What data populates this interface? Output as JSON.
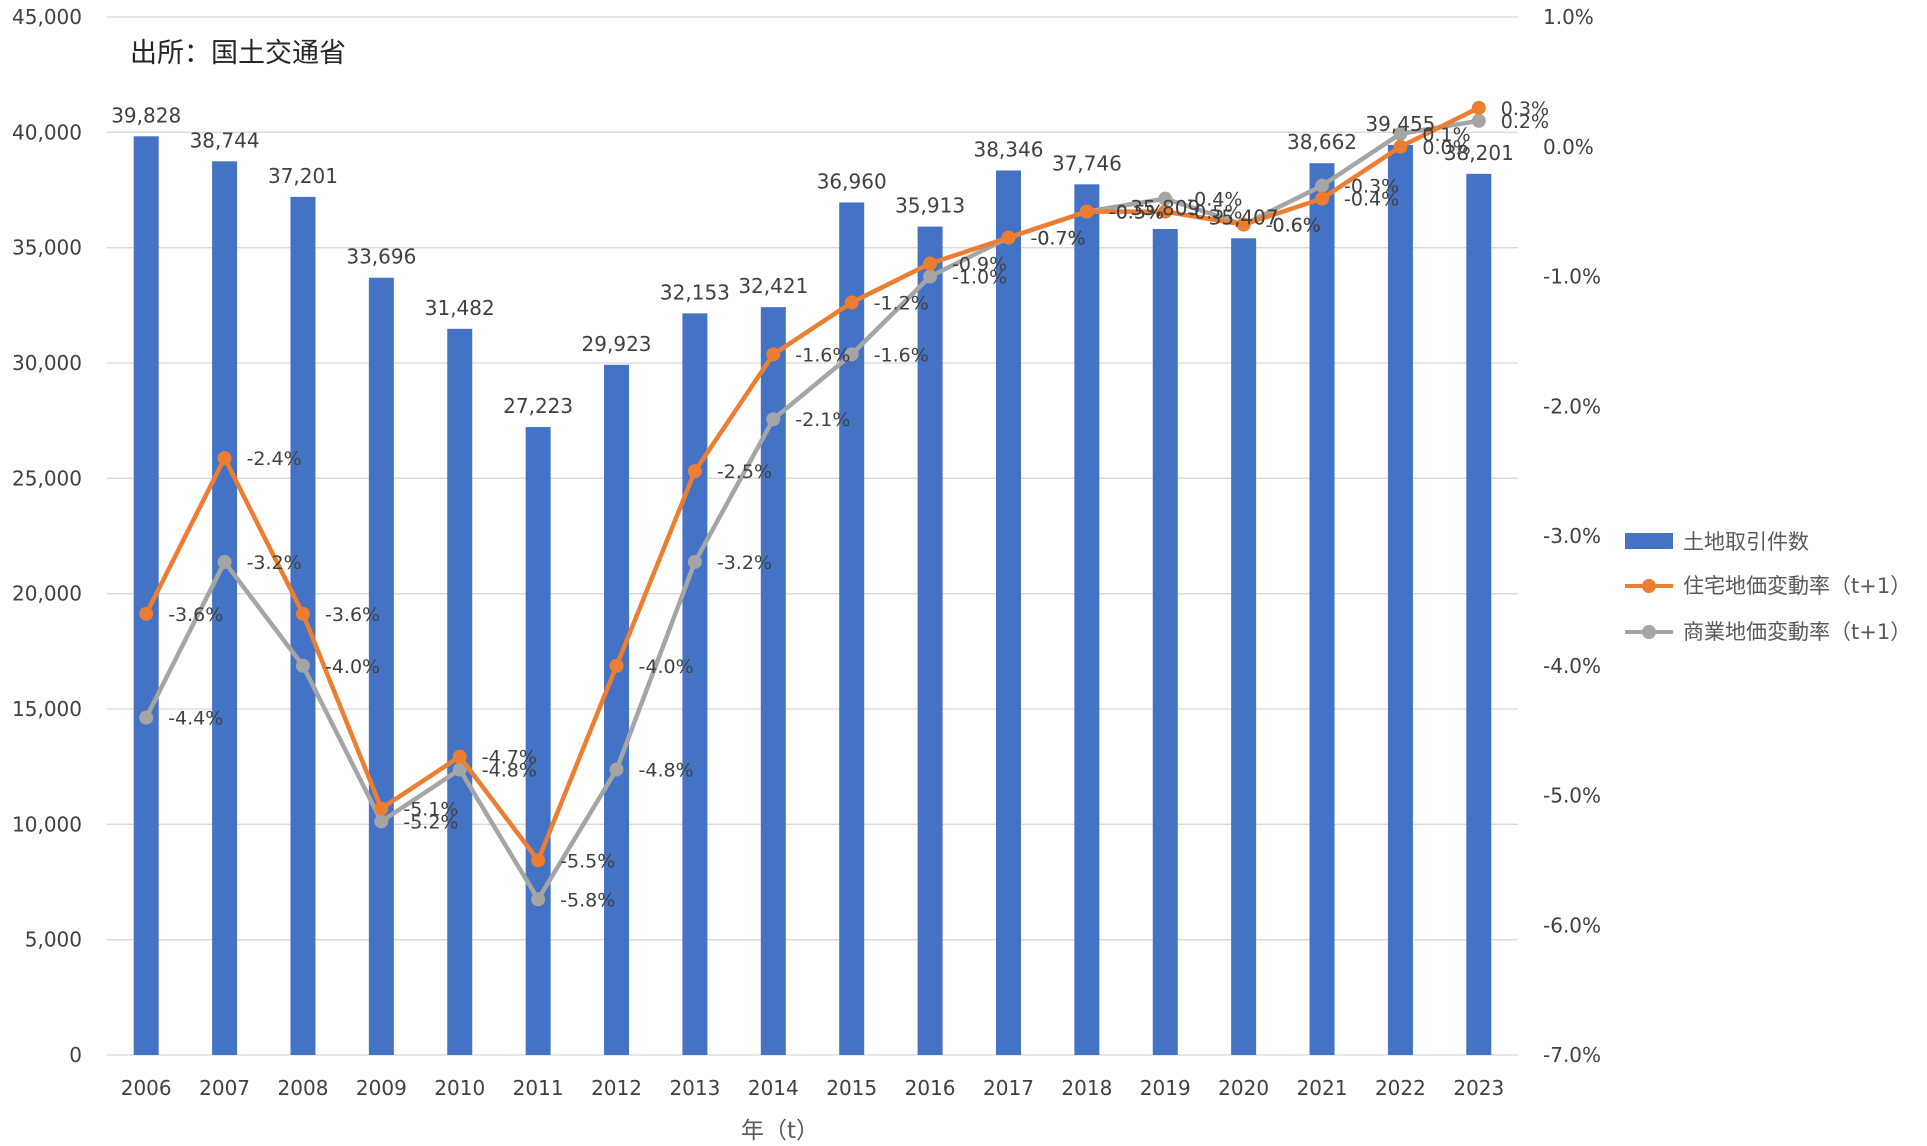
{
  "source_note": "出所：国土交通省",
  "colors": {
    "bar": "#4472C4",
    "residential": "#ED7D31",
    "commercial": "#A5A5A5",
    "grid": "#D9D9D9",
    "text": "#404040"
  },
  "chart_data": {
    "type": "bar",
    "title": "",
    "xlabel": "年（t）",
    "categories": [
      "2006",
      "2007",
      "2008",
      "2009",
      "2010",
      "2011",
      "2012",
      "2013",
      "2014",
      "2015",
      "2016",
      "2017",
      "2018",
      "2019",
      "2020",
      "2021",
      "2022",
      "2023"
    ],
    "series": [
      {
        "name": "土地取引件数",
        "type": "bar",
        "axis": "left",
        "values": [
          39828,
          38744,
          37201,
          33696,
          31482,
          27223,
          29923,
          32153,
          32421,
          36960,
          35913,
          38346,
          37746,
          35809,
          35407,
          38662,
          39455,
          38201
        ],
        "labels": [
          "39,828",
          "38,744",
          "37,201",
          "33,696",
          "31,482",
          "27,223",
          "29,923",
          "32,153",
          "32,421",
          "36,960",
          "35,913",
          "38,346",
          "37,746",
          "35,809",
          "35,407",
          "38,662",
          "39,455",
          "38,201"
        ]
      },
      {
        "name": "住宅地価変動率（t+1）",
        "type": "line",
        "axis": "right",
        "values": [
          -3.6,
          -2.4,
          -3.6,
          -5.1,
          -4.7,
          -5.5,
          -4.0,
          -2.5,
          -1.6,
          -1.2,
          -0.9,
          -0.7,
          -0.5,
          -0.5,
          -0.6,
          -0.4,
          0.0,
          0.3
        ],
        "labels": [
          "-3.6%",
          "-2.4%",
          "-3.6%",
          "-5.1%",
          "-4.7%",
          "-5.5%",
          "-4.0%",
          "-2.5%",
          "-1.6%",
          "-1.2%",
          "-0.9%",
          "-0.7%",
          "-0.5%",
          "-0.5%",
          "-0.6%",
          "-0.4%",
          "0.0%",
          "0.3%"
        ]
      },
      {
        "name": "商業地価変動率（t+1）",
        "type": "line",
        "axis": "right",
        "values": [
          -4.4,
          -3.2,
          -4.0,
          -5.2,
          -4.8,
          -5.8,
          -4.8,
          -3.2,
          -2.1,
          -1.6,
          -1.0,
          -0.7,
          -0.5,
          -0.4,
          -0.6,
          -0.3,
          0.1,
          0.2
        ],
        "labels": [
          "-4.4%",
          "-3.2%",
          "-4.0%",
          "-5.2%",
          "-4.8%",
          "-5.8%",
          "-4.8%",
          "-3.2%",
          "-2.1%",
          "-1.6%",
          "-1.0%",
          "-0.7%",
          "-0.5%",
          "-0.4%",
          "-0.6%",
          "-0.3%",
          "0.1%",
          "0.2%"
        ]
      }
    ],
    "y_left": {
      "min": 0,
      "max": 45000,
      "step": 5000,
      "ticks": [
        "0",
        "5,000",
        "10,000",
        "15,000",
        "20,000",
        "25,000",
        "30,000",
        "35,000",
        "40,000",
        "45,000"
      ]
    },
    "y_right": {
      "min": -7.0,
      "max": 1.0,
      "step": 1.0,
      "ticks": [
        "-7.0%",
        "-6.0%",
        "-5.0%",
        "-4.0%",
        "-3.0%",
        "-2.0%",
        "-1.0%",
        "0.0%",
        "1.0%"
      ]
    },
    "grid": true,
    "legend_position": "right"
  }
}
